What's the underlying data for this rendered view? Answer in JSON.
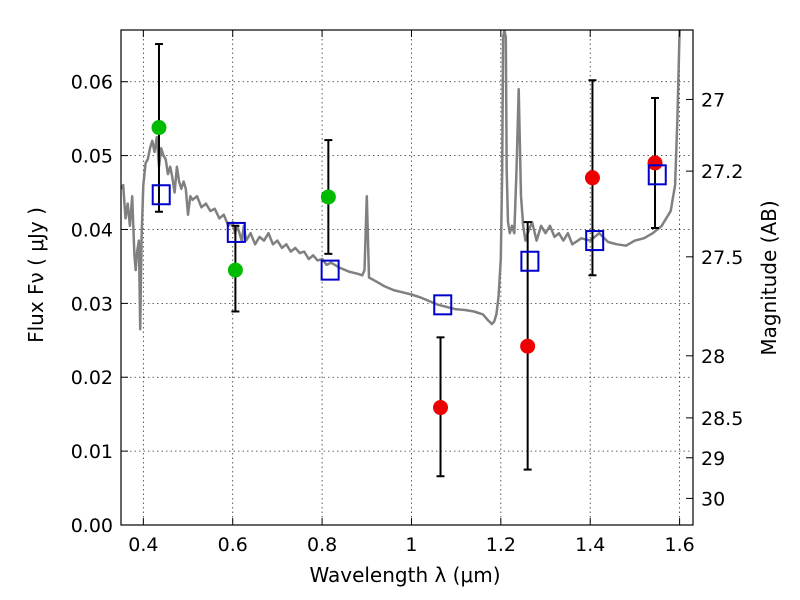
{
  "chart_data": {
    "type": "scatter",
    "title": "",
    "xlabel": "Wavelength  λ (μm)",
    "ylabel": "Flux  Fν  ( μJy )",
    "ylabel_right": "Magnitude (AB)",
    "xlim": [
      0.35,
      1.63
    ],
    "ylim": [
      0.0,
      0.067
    ],
    "grid": true,
    "x_ticks": [
      {
        "value": 0.4,
        "label": "0.4"
      },
      {
        "value": 0.6,
        "label": "0.6"
      },
      {
        "value": 0.8,
        "label": "0.8"
      },
      {
        "value": 1.0,
        "label": "1"
      },
      {
        "value": 1.2,
        "label": "1.2"
      },
      {
        "value": 1.4,
        "label": "1.4"
      },
      {
        "value": 1.6,
        "label": "1.6"
      }
    ],
    "y_ticks": [
      {
        "value": 0.0,
        "label": "0.00"
      },
      {
        "value": 0.01,
        "label": "0.01"
      },
      {
        "value": 0.02,
        "label": "0.02"
      },
      {
        "value": 0.03,
        "label": "0.03"
      },
      {
        "value": 0.04,
        "label": "0.04"
      },
      {
        "value": 0.05,
        "label": "0.05"
      },
      {
        "value": 0.06,
        "label": "0.06"
      }
    ],
    "right_ticks": [
      {
        "flux": 0.0576,
        "label": "27"
      },
      {
        "flux": 0.0479,
        "label": "27.2"
      },
      {
        "flux": 0.0363,
        "label": "27.5"
      },
      {
        "flux": 0.0229,
        "label": "28"
      },
      {
        "flux": 0.0145,
        "label": "28.5"
      },
      {
        "flux": 0.0091,
        "label": "29"
      },
      {
        "flux": 0.0036,
        "label": "30"
      }
    ],
    "series": [
      {
        "marker": "circle",
        "color": "#00bb00",
        "points": [
          {
            "x": 0.435,
            "y": 0.0538
          },
          {
            "x": 0.606,
            "y": 0.0345
          },
          {
            "x": 0.814,
            "y": 0.0444
          }
        ]
      },
      {
        "marker": "circle",
        "color": "#ee0000",
        "points": [
          {
            "x": 1.065,
            "y": 0.0159
          },
          {
            "x": 1.26,
            "y": 0.0242
          },
          {
            "x": 1.405,
            "y": 0.047
          },
          {
            "x": 1.545,
            "y": 0.049
          }
        ]
      },
      {
        "marker": "square",
        "color": "#0000cc",
        "points": [
          {
            "x": 0.44,
            "y": 0.0447
          },
          {
            "x": 0.608,
            "y": 0.0396
          },
          {
            "x": 0.818,
            "y": 0.0345
          },
          {
            "x": 1.07,
            "y": 0.0298
          },
          {
            "x": 1.265,
            "y": 0.0357
          },
          {
            "x": 1.41,
            "y": 0.0385
          },
          {
            "x": 1.55,
            "y": 0.0474
          }
        ]
      }
    ],
    "error_bars": [
      {
        "x": 0.435,
        "low": 0.0424,
        "high": 0.0651
      },
      {
        "x": 0.606,
        "low": 0.0289,
        "high": 0.0405
      },
      {
        "x": 0.814,
        "low": 0.0367,
        "high": 0.0521
      },
      {
        "x": 1.065,
        "low": 0.0066,
        "high": 0.0254
      },
      {
        "x": 1.26,
        "low": 0.0075,
        "high": 0.041
      },
      {
        "x": 1.405,
        "low": 0.0338,
        "high": 0.0602
      },
      {
        "x": 1.545,
        "low": 0.0402,
        "high": 0.0578
      }
    ],
    "model_spectrum": {
      "color": "#808080",
      "points": [
        [
          0.35,
          0.0455
        ],
        [
          0.355,
          0.046
        ],
        [
          0.36,
          0.0415
        ],
        [
          0.365,
          0.0435
        ],
        [
          0.37,
          0.0405
        ],
        [
          0.375,
          0.0445
        ],
        [
          0.38,
          0.0365
        ],
        [
          0.383,
          0.0345
        ],
        [
          0.386,
          0.037
        ],
        [
          0.39,
          0.0385
        ],
        [
          0.393,
          0.0265
        ],
        [
          0.396,
          0.039
        ],
        [
          0.4,
          0.046
        ],
        [
          0.405,
          0.049
        ],
        [
          0.41,
          0.0495
        ],
        [
          0.415,
          0.051
        ],
        [
          0.42,
          0.052
        ],
        [
          0.425,
          0.0505
        ],
        [
          0.43,
          0.0525
        ],
        [
          0.435,
          0.0485
        ],
        [
          0.44,
          0.051
        ],
        [
          0.445,
          0.05
        ],
        [
          0.45,
          0.0495
        ],
        [
          0.455,
          0.0475
        ],
        [
          0.46,
          0.0485
        ],
        [
          0.465,
          0.047
        ],
        [
          0.47,
          0.045
        ],
        [
          0.475,
          0.0485
        ],
        [
          0.48,
          0.0465
        ],
        [
          0.485,
          0.0455
        ],
        [
          0.49,
          0.0465
        ],
        [
          0.495,
          0.0455
        ],
        [
          0.5,
          0.042
        ],
        [
          0.505,
          0.0445
        ],
        [
          0.51,
          0.044
        ],
        [
          0.52,
          0.0445
        ],
        [
          0.53,
          0.043
        ],
        [
          0.54,
          0.0435
        ],
        [
          0.55,
          0.0425
        ],
        [
          0.56,
          0.0428
        ],
        [
          0.57,
          0.0415
        ],
        [
          0.58,
          0.042
        ],
        [
          0.59,
          0.0405
        ],
        [
          0.6,
          0.041
        ],
        [
          0.605,
          0.0395
        ],
        [
          0.61,
          0.0405
        ],
        [
          0.62,
          0.0385
        ],
        [
          0.625,
          0.0405
        ],
        [
          0.63,
          0.0385
        ],
        [
          0.64,
          0.0395
        ],
        [
          0.65,
          0.038
        ],
        [
          0.66,
          0.039
        ],
        [
          0.67,
          0.0385
        ],
        [
          0.68,
          0.0395
        ],
        [
          0.69,
          0.038
        ],
        [
          0.7,
          0.0385
        ],
        [
          0.71,
          0.0375
        ],
        [
          0.72,
          0.038
        ],
        [
          0.73,
          0.037
        ],
        [
          0.74,
          0.0375
        ],
        [
          0.75,
          0.0368
        ],
        [
          0.76,
          0.037
        ],
        [
          0.77,
          0.036
        ],
        [
          0.78,
          0.0365
        ],
        [
          0.79,
          0.0358
        ],
        [
          0.8,
          0.036
        ],
        [
          0.81,
          0.0352
        ],
        [
          0.82,
          0.0355
        ],
        [
          0.84,
          0.0348
        ],
        [
          0.86,
          0.0343
        ],
        [
          0.88,
          0.034
        ],
        [
          0.89,
          0.0338
        ],
        [
          0.895,
          0.0345
        ],
        [
          0.9,
          0.0445
        ],
        [
          0.905,
          0.0335
        ],
        [
          0.92,
          0.033
        ],
        [
          0.94,
          0.0323
        ],
        [
          0.96,
          0.0318
        ],
        [
          0.98,
          0.0315
        ],
        [
          1.0,
          0.0312
        ],
        [
          1.02,
          0.0308
        ],
        [
          1.04,
          0.0303
        ],
        [
          1.06,
          0.0298
        ],
        [
          1.08,
          0.0295
        ],
        [
          1.1,
          0.0292
        ],
        [
          1.12,
          0.0291
        ],
        [
          1.14,
          0.0289
        ],
        [
          1.16,
          0.0285
        ],
        [
          1.17,
          0.0278
        ],
        [
          1.18,
          0.0272
        ],
        [
          1.185,
          0.0275
        ],
        [
          1.19,
          0.0285
        ],
        [
          1.195,
          0.031
        ],
        [
          1.2,
          0.036
        ],
        [
          1.203,
          0.048
        ],
        [
          1.205,
          0.066
        ],
        [
          1.208,
          0.067
        ],
        [
          1.211,
          0.066
        ],
        [
          1.213,
          0.048
        ],
        [
          1.216,
          0.041
        ],
        [
          1.22,
          0.0395
        ],
        [
          1.225,
          0.0405
        ],
        [
          1.23,
          0.0395
        ],
        [
          1.235,
          0.048
        ],
        [
          1.24,
          0.059
        ],
        [
          1.245,
          0.0445
        ],
        [
          1.25,
          0.0405
        ],
        [
          1.255,
          0.0385
        ],
        [
          1.26,
          0.0395
        ],
        [
          1.27,
          0.041
        ],
        [
          1.28,
          0.0385
        ],
        [
          1.29,
          0.0405
        ],
        [
          1.3,
          0.0395
        ],
        [
          1.31,
          0.0405
        ],
        [
          1.32,
          0.039
        ],
        [
          1.33,
          0.0395
        ],
        [
          1.34,
          0.0385
        ],
        [
          1.35,
          0.0395
        ],
        [
          1.36,
          0.038
        ],
        [
          1.38,
          0.0388
        ],
        [
          1.4,
          0.0385
        ],
        [
          1.42,
          0.0395
        ],
        [
          1.44,
          0.0383
        ],
        [
          1.46,
          0.038
        ],
        [
          1.48,
          0.0378
        ],
        [
          1.5,
          0.0385
        ],
        [
          1.52,
          0.0388
        ],
        [
          1.54,
          0.0395
        ],
        [
          1.56,
          0.0405
        ],
        [
          1.58,
          0.0425
        ],
        [
          1.59,
          0.046
        ],
        [
          1.595,
          0.055
        ],
        [
          1.6,
          0.067
        ]
      ]
    }
  }
}
